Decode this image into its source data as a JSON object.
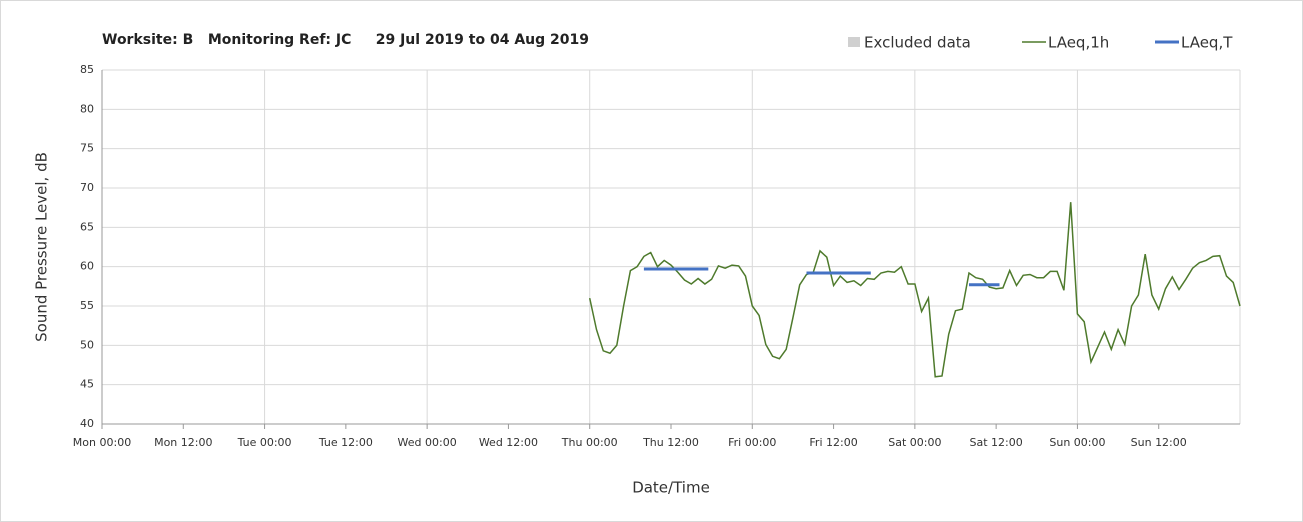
{
  "chart_data": {
    "type": "line",
    "title": "Worksite: B   Monitoring Ref: JC     29 Jul 2019 to 04 Aug 2019",
    "xlabel": "Date/Time",
    "ylabel": "Sound Pressure Level, dB",
    "xlim": [
      0,
      168
    ],
    "xticks": [
      {
        "value": 0,
        "label": "Mon 00:00"
      },
      {
        "value": 12,
        "label": "Mon 12:00"
      },
      {
        "value": 24,
        "label": "Tue 00:00"
      },
      {
        "value": 36,
        "label": "Tue 12:00"
      },
      {
        "value": 48,
        "label": "Wed 00:00"
      },
      {
        "value": 60,
        "label": "Wed 12:00"
      },
      {
        "value": 72,
        "label": "Thu 00:00"
      },
      {
        "value": 84,
        "label": "Thu 12:00"
      },
      {
        "value": 96,
        "label": "Fri 00:00"
      },
      {
        "value": 108,
        "label": "Fri 12:00"
      },
      {
        "value": 120,
        "label": "Sat 00:00"
      },
      {
        "value": 132,
        "label": "Sat 12:00"
      },
      {
        "value": 144,
        "label": "Sun 00:00"
      },
      {
        "value": 156,
        "label": "Sun 12:00"
      }
    ],
    "xgrid": [
      24,
      48,
      72,
      96,
      120,
      144,
      168
    ],
    "ylim": [
      40,
      85
    ],
    "yticks": [
      40,
      45,
      50,
      55,
      60,
      65,
      70,
      75,
      80,
      85
    ],
    "grid": true,
    "legend": "top-right",
    "series": [
      {
        "name": "Excluded data",
        "color": "#d0d0d0",
        "kind": "area",
        "x": [],
        "values": []
      },
      {
        "name": "LAeq,1h",
        "color": "#4e7a2c",
        "x": [
          72,
          73,
          74,
          75,
          76,
          77,
          78,
          79,
          80,
          81,
          82,
          83,
          84,
          85,
          86,
          87,
          88,
          89,
          90,
          91,
          92,
          93,
          94,
          95,
          96,
          97,
          98,
          99,
          100,
          101,
          102,
          103,
          104,
          105,
          106,
          107,
          108,
          109,
          110,
          111,
          112,
          113,
          114,
          115,
          116,
          117,
          118,
          119,
          120,
          121,
          122,
          123,
          124,
          125,
          126,
          127,
          128,
          129,
          130,
          131,
          132,
          133,
          134,
          135,
          136,
          137,
          138,
          139,
          140,
          141,
          142,
          143,
          144,
          145,
          146,
          147,
          148,
          149,
          150,
          151,
          152,
          153,
          154,
          155,
          156,
          157,
          158,
          159,
          160,
          161,
          162,
          163,
          164,
          165,
          166,
          167,
          168
        ],
        "values": [
          56,
          52,
          49.3,
          49,
          50,
          55,
          59.5,
          60,
          61.3,
          61.8,
          60,
          60.8,
          60.2,
          59.3,
          58.3,
          57.8,
          58.5,
          57.8,
          58.4,
          60.1,
          59.8,
          60.2,
          60.1,
          58.8,
          55,
          53.8,
          50.1,
          48.6,
          48.3,
          49.5,
          53.5,
          57.7,
          59,
          59.3,
          62,
          61.2,
          57.6,
          58.8,
          58,
          58.2,
          57.6,
          58.5,
          58.4,
          59.2,
          59.4,
          59.3,
          60,
          57.8,
          57.8,
          54.3,
          56,
          46,
          46.1,
          51.4,
          54.4,
          54.6,
          59.2,
          58.6,
          58.4,
          57.4,
          57.2,
          57.3,
          59.5,
          57.6,
          58.9,
          59,
          58.6,
          58.6,
          59.4,
          59.4,
          57,
          68.2,
          54,
          53,
          47.9,
          49.8,
          51.7,
          49.5,
          52,
          50.1,
          55,
          56.4,
          61.6,
          56.4,
          54.6,
          57.2,
          58.7,
          57.1,
          58.4,
          59.8,
          60.5,
          60.8,
          61.3,
          61.4,
          58.8,
          58,
          55
        ]
      },
      {
        "name": "LAeq,T",
        "color": "#4472c4",
        "x": [
          80,
          89.5,
          96,
          104,
          113.5,
          120,
          128,
          132.5
        ],
        "values": [
          59.7,
          59.7,
          null,
          59.2,
          59.2,
          null,
          57.7,
          57.7
        ]
      }
    ]
  }
}
